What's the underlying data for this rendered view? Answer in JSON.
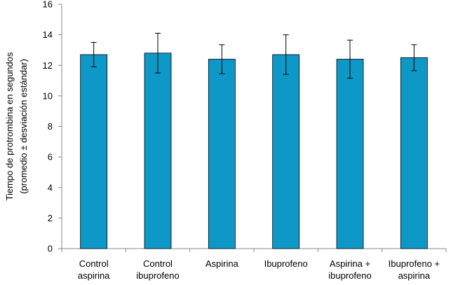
{
  "chart_data": {
    "type": "bar",
    "categories": [
      [
        "Control",
        "aspirina"
      ],
      [
        "Control",
        "ibuprofeno"
      ],
      [
        "Aspirina"
      ],
      [
        "Ibuprofeno"
      ],
      [
        "Aspirina +",
        "ibuprofeno"
      ],
      [
        "Ibuprofeno +",
        "aspirina"
      ]
    ],
    "values": [
      12.7,
      12.8,
      12.4,
      12.7,
      12.4,
      12.5
    ],
    "errors": [
      0.8,
      1.3,
      0.95,
      1.3,
      1.25,
      0.85
    ],
    "ylabel_lines": [
      "Tiempo de protrombina en segundos",
      "(promedio  ± desviación estándar)"
    ],
    "xlabel": "",
    "ylim": [
      0,
      16
    ],
    "yticks": [
      "0",
      "2",
      "4",
      "6",
      "8",
      "10",
      "12",
      "14",
      "16"
    ],
    "bar_color": "#0e98c8",
    "bar_stroke": "#000000",
    "grid": false,
    "legend": "none"
  }
}
